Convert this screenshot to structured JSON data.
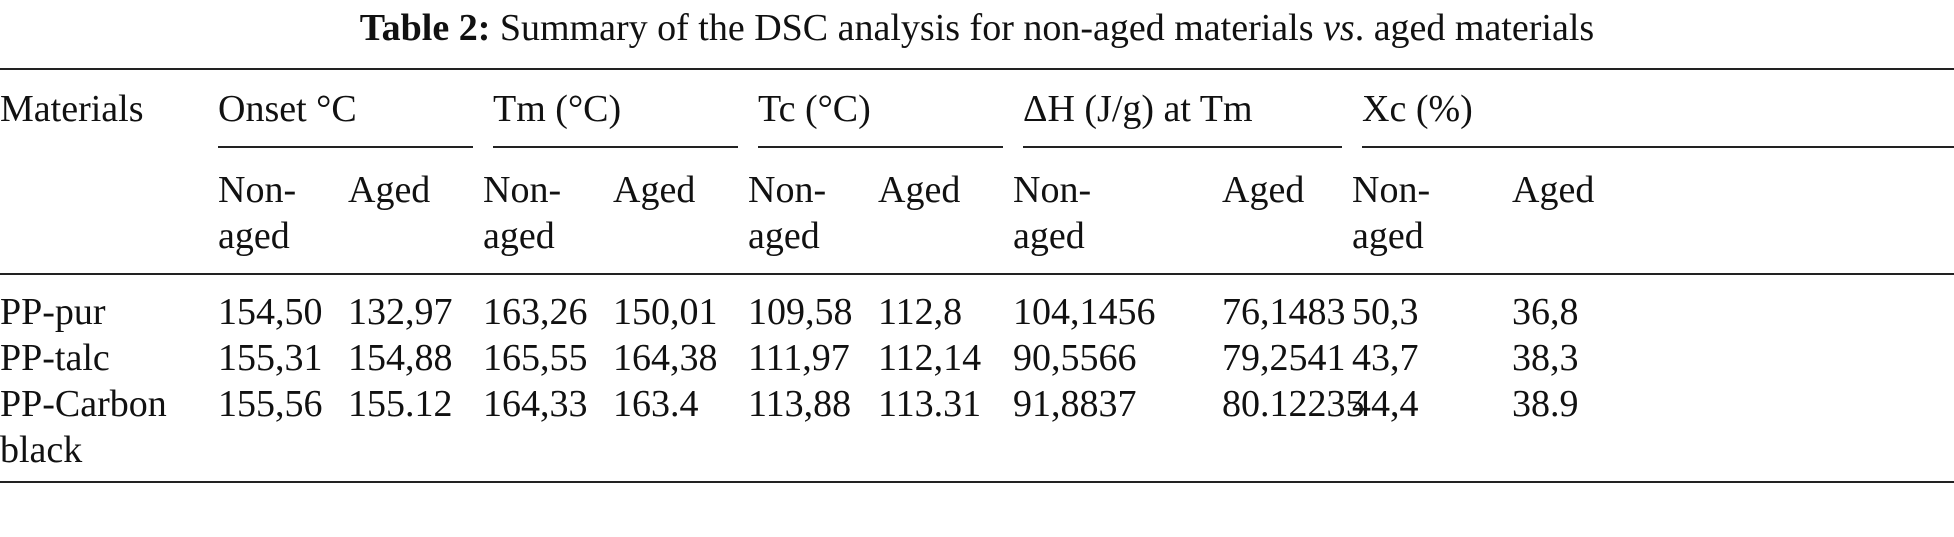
{
  "caption": {
    "label": "Table 2:",
    "text_before": "Summary of the DSC analysis for non-aged materials",
    "vs": "vs",
    "text_after": ". aged materials"
  },
  "table": {
    "corner_header": "Materials",
    "groups": [
      "Onset °C",
      "Tm (°C)",
      "Tc (°C)",
      "ΔH (J/g) at Tm",
      "Xc (%)"
    ],
    "sub_headers": {
      "non_aged_line1": "Non-",
      "non_aged_line2": "aged",
      "aged": "Aged"
    },
    "rows": [
      {
        "material": "PP-pur",
        "values": [
          "154,50",
          "132,97",
          "163,26",
          "150,01",
          "109,58",
          "112,8",
          "104,1456",
          "76,1483",
          "50,3",
          "36,8"
        ]
      },
      {
        "material": "PP-talc",
        "values": [
          "155,31",
          "154,88",
          "165,55",
          "164,38",
          "111,97",
          "112,14",
          "90,5566",
          "79,2541",
          "43,7",
          "38,3"
        ]
      },
      {
        "material_line1": "PP-Carbon",
        "material_line2": "black",
        "values": [
          "155,56",
          "155.12",
          "164,33",
          "163.4",
          "113,88",
          "113.31",
          "91,8837",
          "80.12235",
          "44,4",
          "38.9"
        ]
      }
    ]
  }
}
